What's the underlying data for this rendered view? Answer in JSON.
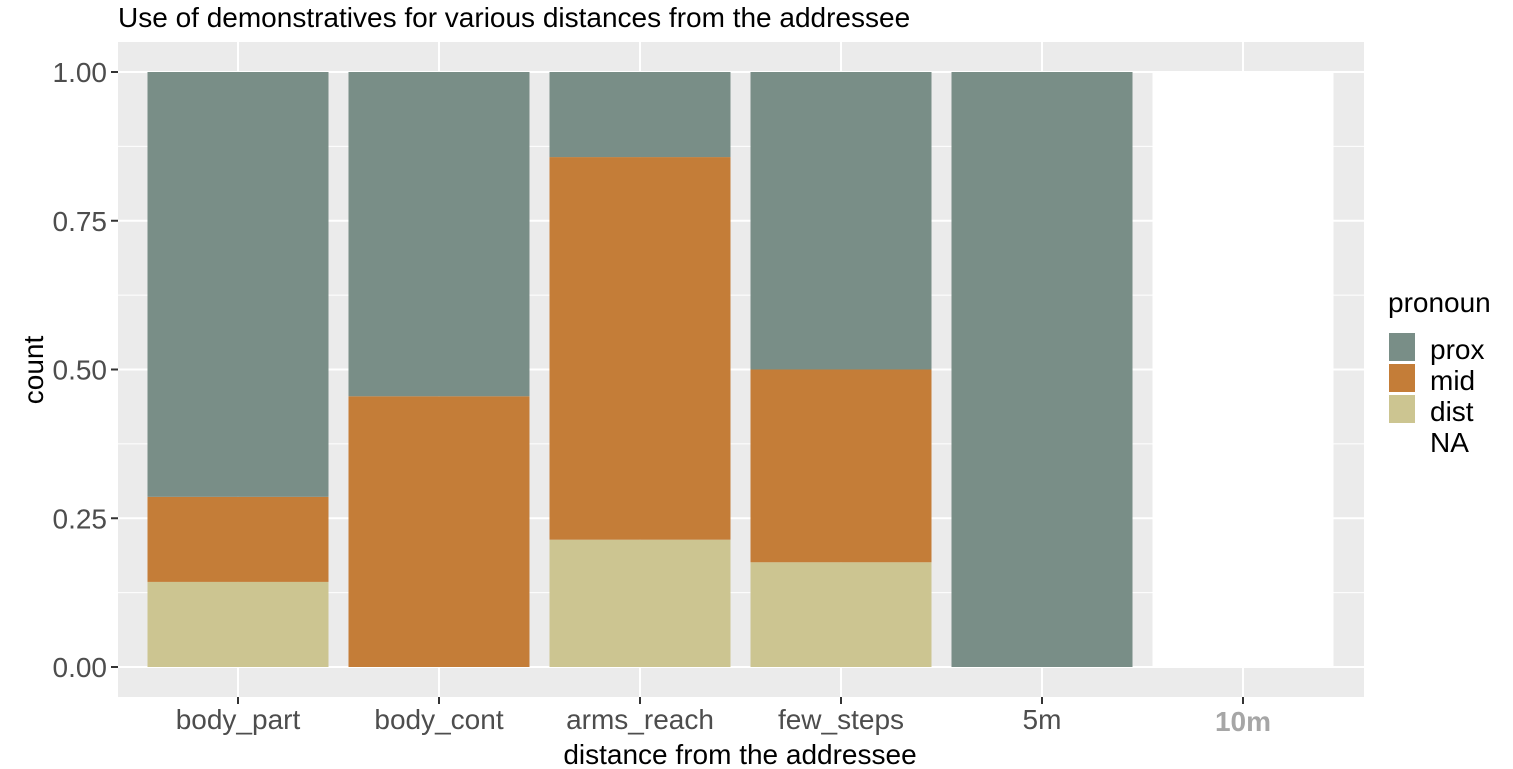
{
  "chart_data": {
    "type": "bar",
    "stacked": true,
    "title": "Use of demonstratives for various distances from the addressee",
    "xlabel": "distance from the addressee",
    "ylabel": "count",
    "ylim": [
      0,
      1
    ],
    "yticks": [
      "0.00",
      "0.25",
      "0.50",
      "0.75",
      "1.00"
    ],
    "categories": [
      "body_part",
      "body_cont",
      "arms_reach",
      "few_steps",
      "5m",
      "10m"
    ],
    "highlighted_category": "10m",
    "series": [
      {
        "name": "dist",
        "color": "#CCC591",
        "values": [
          0.143,
          0,
          0.214,
          0.176,
          0,
          0
        ]
      },
      {
        "name": "mid",
        "color": "#C47D38",
        "values": [
          0.143,
          0.455,
          0.643,
          0.324,
          0,
          0
        ]
      },
      {
        "name": "prox",
        "color": "#798E87",
        "values": [
          0.714,
          0.545,
          0.143,
          0.5,
          1.0,
          0
        ]
      },
      {
        "name": "NA",
        "color": "#FFFFFF",
        "values": [
          0,
          0,
          0,
          0,
          0,
          1.0
        ]
      }
    ],
    "grid": true,
    "panel_background": "#EBEBEB",
    "legend": {
      "title": "pronoun",
      "placement": "right",
      "items": [
        {
          "label": "prox",
          "color": "#798E87"
        },
        {
          "label": "mid",
          "color": "#C47D38"
        },
        {
          "label": "dist",
          "color": "#CCC591"
        },
        {
          "label": "NA",
          "color": "#FFFFFF"
        }
      ]
    }
  }
}
